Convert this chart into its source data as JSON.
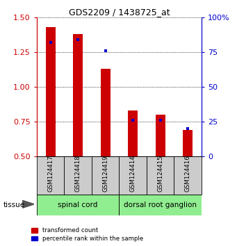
{
  "title": "GDS2209 / 1438725_at",
  "samples": [
    "GSM124417",
    "GSM124418",
    "GSM124419",
    "GSM124414",
    "GSM124415",
    "GSM124416"
  ],
  "red_values": [
    1.43,
    1.38,
    1.13,
    0.83,
    0.8,
    0.69
  ],
  "blue_values_pct": [
    82,
    84,
    76,
    26,
    26,
    20
  ],
  "ylim_left": [
    0.5,
    1.5
  ],
  "ylim_right": [
    0,
    100
  ],
  "yticks_left": [
    0.5,
    0.75,
    1.0,
    1.25,
    1.5
  ],
  "yticks_right": [
    0,
    25,
    50,
    75,
    100
  ],
  "tissue_label": "tissue",
  "red_color": "#cc0000",
  "blue_color": "#0000cc",
  "bar_width": 0.35,
  "blue_bar_width": 0.1,
  "label_box_color": "#cccccc",
  "group_box_color": "#90ee90",
  "legend_red": "transformed count",
  "legend_blue": "percentile rank within the sample",
  "spinal_cord_label": "spinal cord",
  "dorsal_label": "dorsal root ganglion"
}
